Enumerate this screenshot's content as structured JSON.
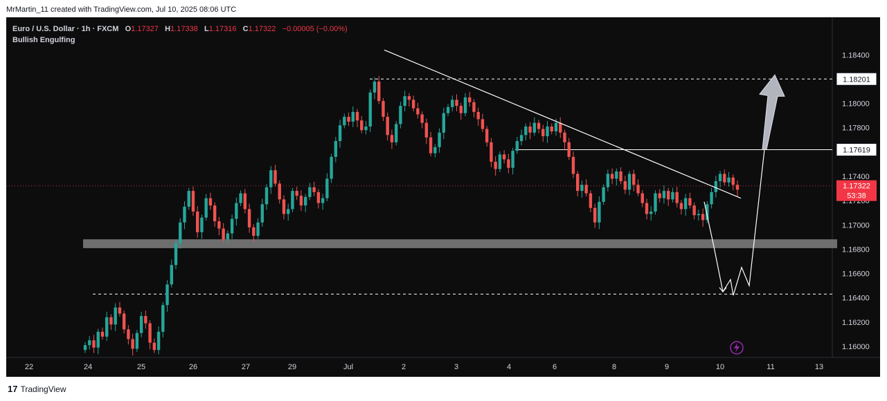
{
  "header": {
    "credit": "MrMartin_11 created with TradingView.com, Jul 10, 2025 08:06 UTC"
  },
  "legend": {
    "symbol": "Euro / U.S. Dollar · 1h · FXCM",
    "o_label": "O",
    "o_value": "1.17327",
    "h_label": "H",
    "h_value": "1.17338",
    "l_label": "L",
    "l_value": "1.17316",
    "c_label": "C",
    "c_value": "1.17322",
    "change": "−0.00005 (−0.00%)",
    "pattern": "Bullish Engulfing"
  },
  "footer": {
    "brand": "TradingView",
    "logo": "17"
  },
  "colors": {
    "up": "#26a69a",
    "down": "#ef5350",
    "bg": "#0d0d0e",
    "accent": "#f23645",
    "line": "#ffffff",
    "zone": "#808080"
  },
  "icons": {
    "flash": "lightning-bolt-icon"
  },
  "chart_data": {
    "type": "candlestick",
    "symbol": "EURUSD",
    "timeframe": "1h",
    "y_ticks": [
      "1.18400",
      "1.18000",
      "1.17800",
      "1.17400",
      "1.17200",
      "1.17000",
      "1.16800",
      "1.16600",
      "1.16400",
      "1.16200",
      "1.16000"
    ],
    "ylim": [
      1.1596,
      1.1851
    ],
    "x_ticks": [
      "22",
      "24",
      "25",
      "26",
      "27",
      "29",
      "Jul",
      "2",
      "3",
      "4",
      "6",
      "8",
      "9",
      "10",
      "11",
      "13"
    ],
    "price_badge": {
      "value": "1.17322",
      "countdown": "53:38",
      "price": 1.17322
    },
    "levels": [
      {
        "label": "1.18201",
        "value": 1.18201,
        "style": "dashed"
      },
      {
        "label": "1.17619",
        "value": 1.17619,
        "style": "solid"
      }
    ],
    "support_zone": {
      "low": 1.1682,
      "high": 1.1687
    },
    "lower_dashed_level": 1.1643,
    "trendline": [
      {
        "date": "Jul 1",
        "price": 1.1844
      },
      {
        "date": "Jul 10",
        "price": 1.1722
      }
    ],
    "projection_path": [
      1.1719,
      1.1682,
      1.1645,
      1.1655,
      1.1642,
      1.1665,
      1.165,
      1.1762
    ],
    "target_arrow": {
      "from": 1.1762,
      "to": 1.18201
    },
    "series_close": [
      1.1601,
      1.1605,
      1.1599,
      1.1612,
      1.1608,
      1.1624,
      1.1618,
      1.1632,
      1.1627,
      1.1614,
      1.1606,
      1.1598,
      1.1611,
      1.1625,
      1.1619,
      1.1603,
      1.1597,
      1.1612,
      1.1634,
      1.1651,
      1.1667,
      1.1685,
      1.1702,
      1.1715,
      1.1728,
      1.1711,
      1.1694,
      1.1706,
      1.1722,
      1.1716,
      1.1703,
      1.1697,
      1.1688,
      1.1693,
      1.1705,
      1.1718,
      1.1726,
      1.1713,
      1.1698,
      1.1691,
      1.1702,
      1.1717,
      1.1731,
      1.1745,
      1.1734,
      1.1721,
      1.1709,
      1.1713,
      1.1728,
      1.1724,
      1.1716,
      1.1723,
      1.1731,
      1.1727,
      1.1718,
      1.1722,
      1.1738,
      1.1756,
      1.1769,
      1.1782,
      1.1789,
      1.1785,
      1.1793,
      1.1786,
      1.1778,
      1.1781,
      1.1809,
      1.1818,
      1.1802,
      1.1789,
      1.1774,
      1.1768,
      1.1783,
      1.1798,
      1.1806,
      1.1803,
      1.1796,
      1.1791,
      1.1784,
      1.1772,
      1.1759,
      1.1764,
      1.1776,
      1.1792,
      1.1797,
      1.1803,
      1.1798,
      1.1792,
      1.1805,
      1.1801,
      1.1793,
      1.1787,
      1.1779,
      1.1768,
      1.1752,
      1.1746,
      1.1758,
      1.1754,
      1.1747,
      1.1761,
      1.1769,
      1.1774,
      1.1781,
      1.1776,
      1.1784,
      1.1779,
      1.1773,
      1.1781,
      1.1777,
      1.1784,
      1.1776,
      1.1768,
      1.1756,
      1.1742,
      1.1728,
      1.1733,
      1.1726,
      1.1714,
      1.1702,
      1.1719,
      1.1731,
      1.1742,
      1.1738,
      1.1744,
      1.1736,
      1.1729,
      1.1742,
      1.1733,
      1.1726,
      1.1718,
      1.1709,
      1.1711,
      1.1726,
      1.1722,
      1.1728,
      1.1721,
      1.1727,
      1.1718,
      1.1713,
      1.1722,
      1.1716,
      1.1708,
      1.1709,
      1.1704,
      1.1717,
      1.1727,
      1.1736,
      1.1742,
      1.1735,
      1.1739,
      1.1733,
      1.1729
    ]
  }
}
